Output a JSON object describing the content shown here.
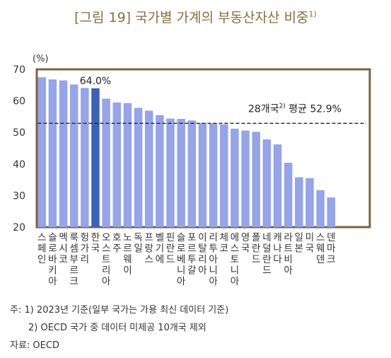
{
  "title": "[그림 19] 국가별 가계의 부동산자산 비중",
  "title_sup": "1)",
  "chart_data": {
    "type": "bar",
    "unit_label": "(%)",
    "categories": [
      "스페인",
      "슬로바키아",
      "멕시코",
      "룩셈부르크",
      "헝가리",
      "한국",
      "오스트리아",
      "호주",
      "노르웨이",
      "독일",
      "프랑스",
      "벨기에",
      "핀란드",
      "슬로베니아",
      "포르투갈",
      "이탈리아",
      "리투아니아",
      "체코",
      "에스토니아",
      "영국",
      "폴란드",
      "네덜란드",
      "캐나다",
      "라트비아",
      "일본",
      "미국",
      "스웨덴",
      "덴마크"
    ],
    "values": [
      67.5,
      66.8,
      66.5,
      65.2,
      64.1,
      64.0,
      60.7,
      59.5,
      59.3,
      57.8,
      56.9,
      55.5,
      54.4,
      54.3,
      53.8,
      53.0,
      52.9,
      52.6,
      51.2,
      50.6,
      50.2,
      47.8,
      46.2,
      40.4,
      35.8,
      35.5,
      31.7,
      29.4
    ],
    "highlight_category": "한국",
    "highlight_label": "64.0%",
    "average": 52.9,
    "average_label": "28개국",
    "average_label_sup": "2)",
    "average_label_suffix": " 평균  52.9%",
    "ylim": [
      20,
      70
    ],
    "yticks": [
      "20",
      "30",
      "40",
      "50",
      "60",
      "70"
    ],
    "colors": {
      "bar": "#96a4e8",
      "highlight": "#3d62b4",
      "frame": "#7a6440",
      "average_line": "#222222"
    }
  },
  "notes": {
    "note1": "주:  1) 2023년 기준(일부 국가는 가용 최신 데이터 기준)",
    "note2": "2) OECD 국가 중 데이터 미제공 10개국 제외",
    "source": "자료:  OECD"
  }
}
